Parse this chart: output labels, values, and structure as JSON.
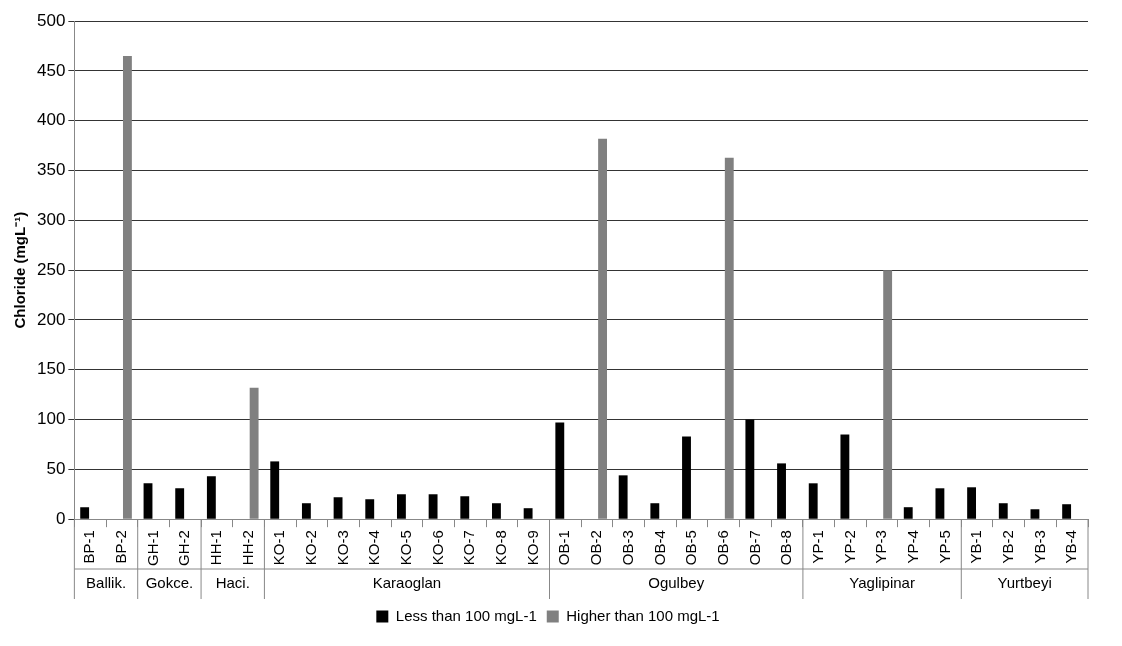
{
  "chart_data": {
    "type": "bar",
    "ylabel": "Chloride (mgL⁻¹)",
    "categories": [
      "BP-1",
      "BP-2",
      "GH-1",
      "GH-2",
      "HH-1",
      "HH-2",
      "KO-1",
      "KO-2",
      "KO-3",
      "KO-4",
      "KO-5",
      "KO-6",
      "KO-7",
      "KO-8",
      "KO-9",
      "OB-1",
      "OB-2",
      "OB-3",
      "OB-4",
      "OB-5",
      "OB-6",
      "OB-7",
      "OB-8",
      "YP-1",
      "YP-2",
      "YP-3",
      "YP-4",
      "YP-5",
      "YB-1",
      "YB-2",
      "YB-3",
      "YB-4"
    ],
    "series": [
      {
        "name": "Less than 100 mgL-1",
        "color": "#000000",
        "values": [
          12,
          null,
          36,
          31,
          43,
          null,
          58,
          16,
          22,
          20,
          25,
          25,
          23,
          16,
          11,
          97,
          null,
          44,
          16,
          83,
          null,
          100,
          56,
          36,
          85,
          null,
          12,
          31,
          32,
          16,
          10,
          15
        ]
      },
      {
        "name": "Higher than 100 mgL-1",
        "color": "#808080",
        "values": [
          null,
          465,
          null,
          null,
          null,
          132,
          null,
          null,
          null,
          null,
          null,
          null,
          null,
          null,
          null,
          null,
          382,
          null,
          null,
          null,
          363,
          null,
          null,
          null,
          null,
          250,
          null,
          null,
          null,
          null,
          null,
          null
        ]
      }
    ],
    "ylim": [
      0,
      500
    ],
    "yticks": [
      0,
      50,
      100,
      150,
      200,
      250,
      300,
      350,
      400,
      450,
      500
    ],
    "grid": "y",
    "legend": "bottom",
    "annotations": [
      "Ballik.",
      "Gokce.",
      "Haci.",
      "Karaoglan",
      "Ogulbey",
      "Yaglipinar",
      "Yurtbeyi"
    ]
  }
}
